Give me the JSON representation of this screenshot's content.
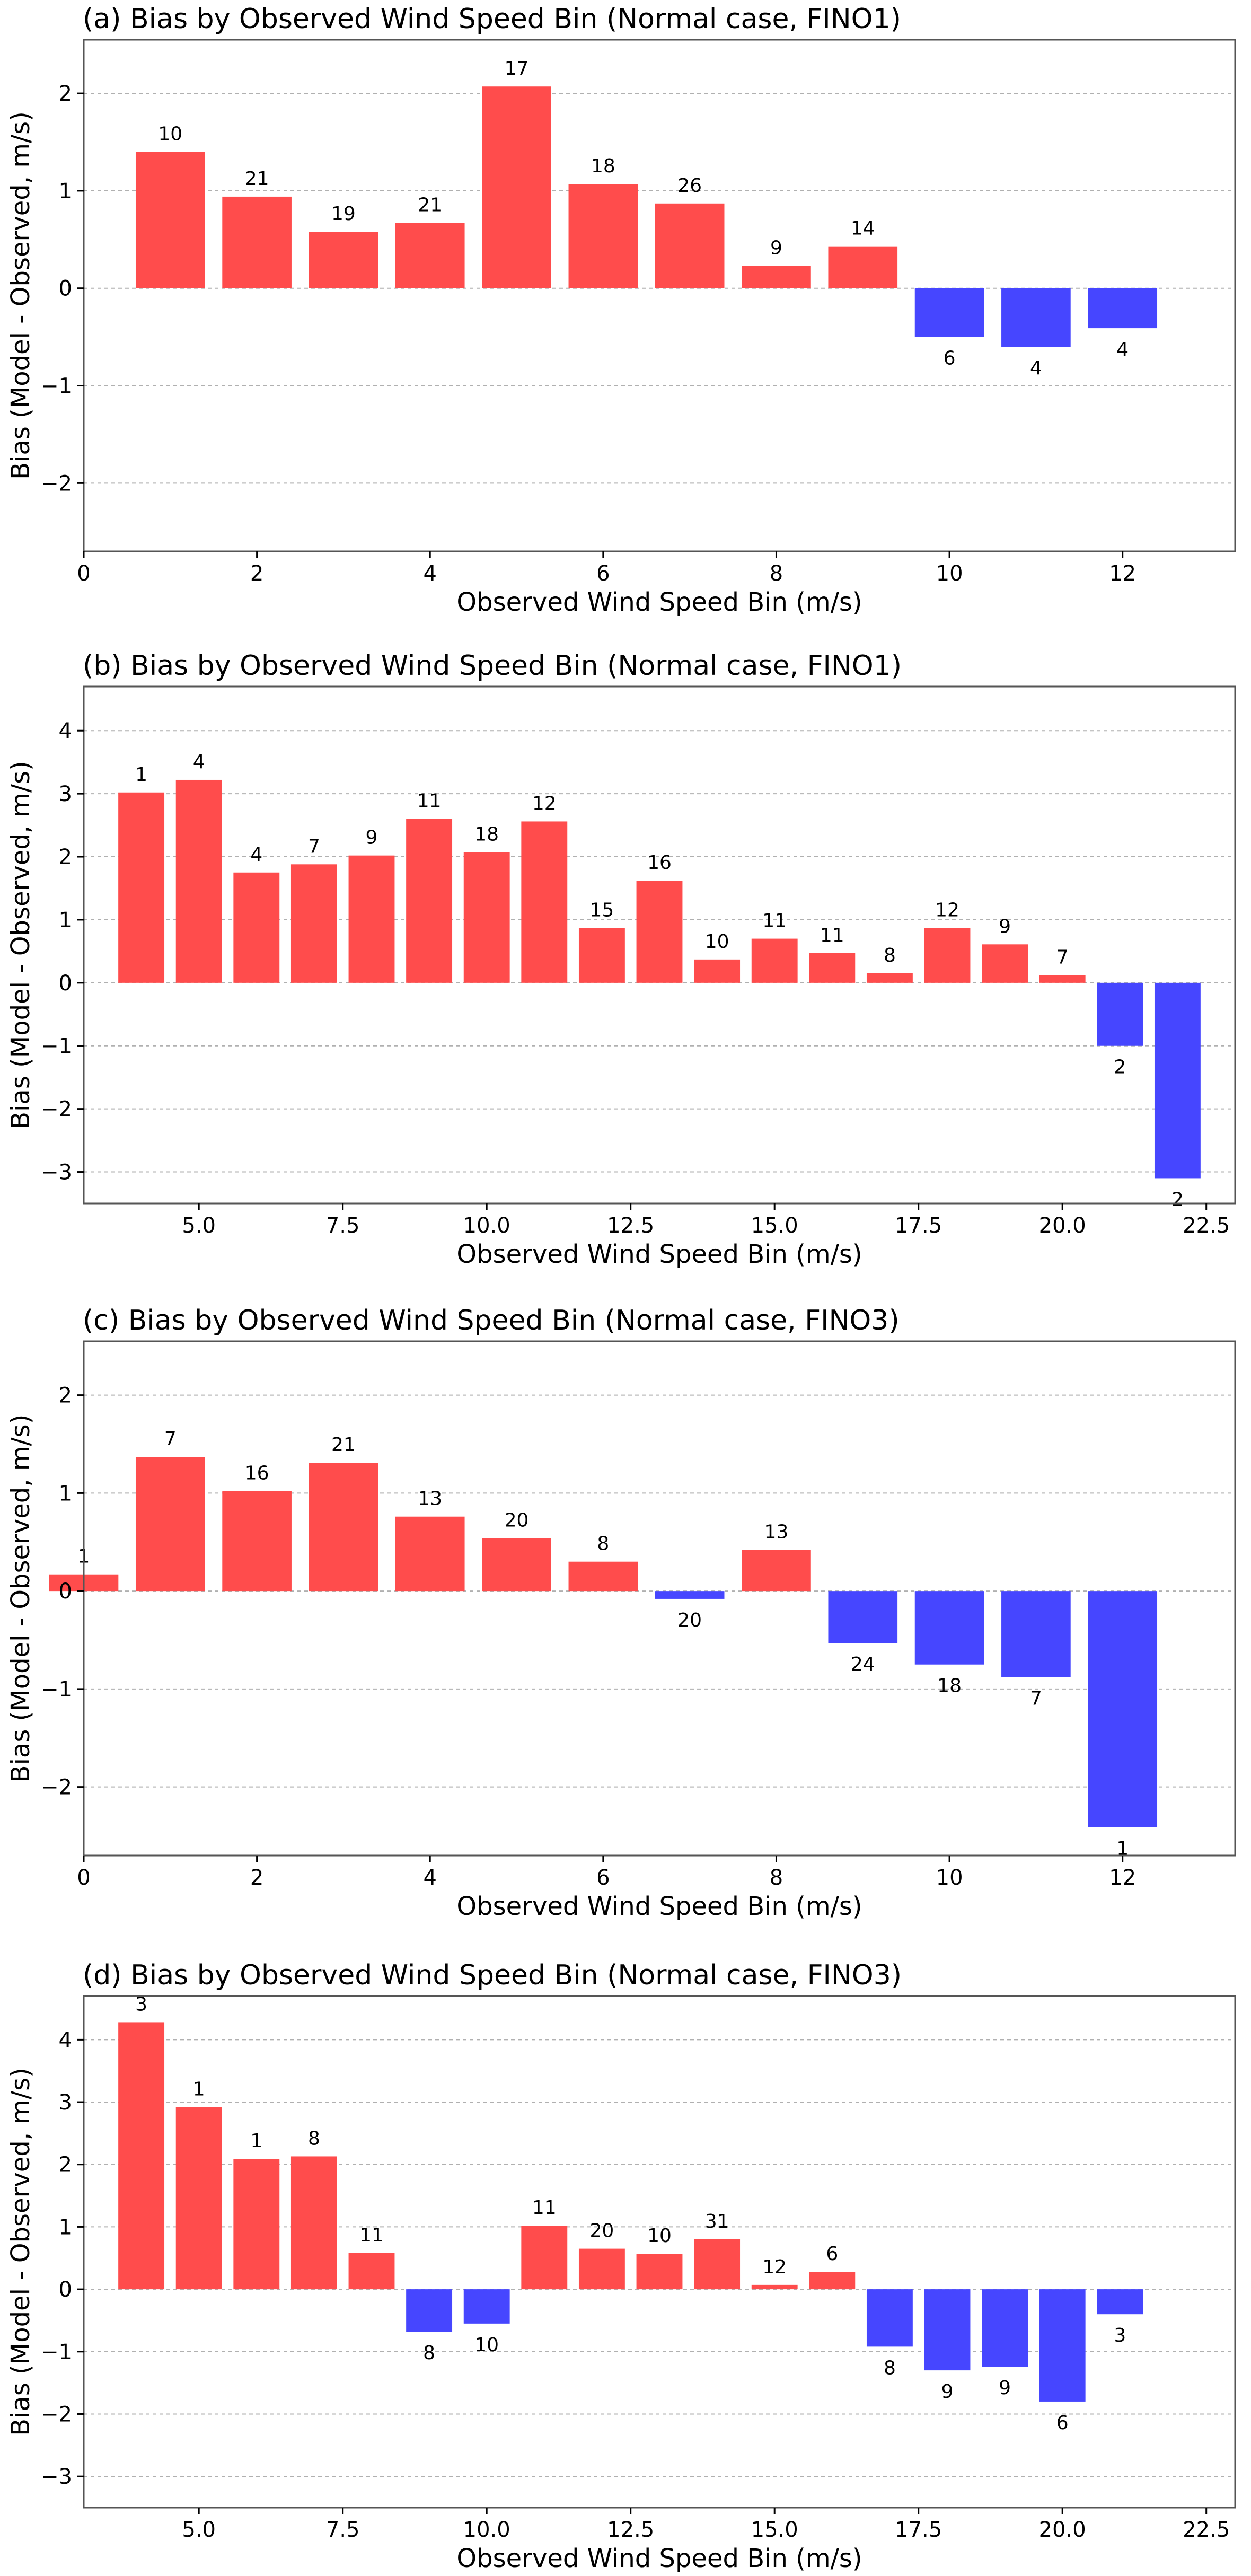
{
  "colors": {
    "positive": "#ff4c4c",
    "negative": "#4646ff",
    "grid": "#b0b0b0",
    "axis": "#555555"
  },
  "chart_data": [
    {
      "id": "a",
      "type": "bar",
      "title": "(a) Bias by Observed Wind Speed Bin (Normal case, FINO1)",
      "xlabel": "Observed Wind Speed Bin (m/s)",
      "ylabel": "Bias (Model - Observed, m/s)",
      "xlim": [
        0,
        13.3
      ],
      "ylim": [
        -2.7,
        2.55
      ],
      "x_ticks": [
        0,
        2,
        4,
        6,
        8,
        10,
        12
      ],
      "x_tick_labels": [
        "0",
        "2",
        "4",
        "6",
        "8",
        "10",
        "12"
      ],
      "y_ticks": [
        -2,
        -1,
        0,
        1,
        2
      ],
      "y_tick_labels": [
        "−2",
        "−1",
        "0",
        "1",
        "2"
      ],
      "grid": "horizontal-dashed",
      "bars": [
        {
          "x": 1,
          "value": 1.4,
          "count": "10"
        },
        {
          "x": 2,
          "value": 0.94,
          "count": "21"
        },
        {
          "x": 3,
          "value": 0.58,
          "count": "19"
        },
        {
          "x": 4,
          "value": 0.67,
          "count": "21"
        },
        {
          "x": 5,
          "value": 2.07,
          "count": "17"
        },
        {
          "x": 6,
          "value": 1.07,
          "count": "18"
        },
        {
          "x": 7,
          "value": 0.87,
          "count": "26"
        },
        {
          "x": 8,
          "value": 0.23,
          "count": "9"
        },
        {
          "x": 9,
          "value": 0.43,
          "count": "14"
        },
        {
          "x": 10,
          "value": -0.5,
          "count": "6"
        },
        {
          "x": 11,
          "value": -0.6,
          "count": "4"
        },
        {
          "x": 12,
          "value": -0.41,
          "count": "4"
        }
      ]
    },
    {
      "id": "b",
      "type": "bar",
      "title": "(b) Bias by Observed Wind Speed Bin (Normal case, FINO1)",
      "xlabel": "Observed Wind Speed Bin (m/s)",
      "ylabel": "Bias (Model - Observed, m/s)",
      "xlim": [
        3.0,
        23.0
      ],
      "ylim": [
        -3.5,
        4.7
      ],
      "x_ticks": [
        5,
        7.5,
        10,
        12.5,
        15,
        17.5,
        20,
        22.5
      ],
      "x_tick_labels": [
        "5.0",
        "7.5",
        "10.0",
        "12.5",
        "15.0",
        "17.5",
        "20.0",
        "22.5"
      ],
      "y_ticks": [
        -3,
        -2,
        -1,
        0,
        1,
        2,
        3,
        4
      ],
      "y_tick_labels": [
        "−3",
        "−2",
        "−1",
        "0",
        "1",
        "2",
        "3",
        "4"
      ],
      "grid": "horizontal-dashed",
      "bars": [
        {
          "x": 4,
          "value": 3.02,
          "count": "1"
        },
        {
          "x": 5,
          "value": 3.22,
          "count": "4"
        },
        {
          "x": 6,
          "value": 1.75,
          "count": "4"
        },
        {
          "x": 7,
          "value": 1.88,
          "count": "7"
        },
        {
          "x": 8,
          "value": 2.02,
          "count": "9"
        },
        {
          "x": 9,
          "value": 2.6,
          "count": "11"
        },
        {
          "x": 10,
          "value": 2.07,
          "count": "18"
        },
        {
          "x": 11,
          "value": 2.56,
          "count": "12"
        },
        {
          "x": 12,
          "value": 0.87,
          "count": "15"
        },
        {
          "x": 13,
          "value": 1.62,
          "count": "16"
        },
        {
          "x": 14,
          "value": 0.37,
          "count": "10"
        },
        {
          "x": 15,
          "value": 0.7,
          "count": "11"
        },
        {
          "x": 16,
          "value": 0.47,
          "count": "11"
        },
        {
          "x": 17,
          "value": 0.15,
          "count": "8"
        },
        {
          "x": 18,
          "value": 0.87,
          "count": "12"
        },
        {
          "x": 19,
          "value": 0.61,
          "count": "9"
        },
        {
          "x": 20,
          "value": 0.12,
          "count": "7"
        },
        {
          "x": 21,
          "value": -1.0,
          "count": "2"
        },
        {
          "x": 22,
          "value": -3.1,
          "count": "2"
        }
      ]
    },
    {
      "id": "c",
      "type": "bar",
      "title": "(c) Bias by Observed Wind Speed Bin (Normal case, FINO3)",
      "xlabel": "Observed Wind Speed Bin (m/s)",
      "ylabel": "Bias (Model - Observed, m/s)",
      "xlim": [
        0,
        13.3
      ],
      "ylim": [
        -2.7,
        2.55
      ],
      "x_ticks": [
        0,
        2,
        4,
        6,
        8,
        10,
        12
      ],
      "x_tick_labels": [
        "0",
        "2",
        "4",
        "6",
        "8",
        "10",
        "12"
      ],
      "y_ticks": [
        -2,
        -1,
        0,
        1,
        2
      ],
      "y_tick_labels": [
        "−2",
        "−1",
        "0",
        "1",
        "2"
      ],
      "grid": "horizontal-dashed",
      "bars": [
        {
          "x": 0,
          "value": 0.17,
          "count": "1"
        },
        {
          "x": 1,
          "value": 1.37,
          "count": "7"
        },
        {
          "x": 2,
          "value": 1.02,
          "count": "16"
        },
        {
          "x": 3,
          "value": 1.31,
          "count": "21"
        },
        {
          "x": 4,
          "value": 0.76,
          "count": "13"
        },
        {
          "x": 5,
          "value": 0.54,
          "count": "20"
        },
        {
          "x": 6,
          "value": 0.3,
          "count": "8"
        },
        {
          "x": 7,
          "value": -0.08,
          "count": "20"
        },
        {
          "x": 8,
          "value": 0.42,
          "count": "13"
        },
        {
          "x": 9,
          "value": -0.53,
          "count": "24"
        },
        {
          "x": 10,
          "value": -0.75,
          "count": "18"
        },
        {
          "x": 11,
          "value": -0.88,
          "count": "7"
        },
        {
          "x": 12,
          "value": -2.41,
          "count": "1"
        }
      ]
    },
    {
      "id": "d",
      "type": "bar",
      "title": "(d) Bias by Observed Wind Speed Bin (Normal case, FINO3)",
      "xlabel": "Observed Wind Speed Bin (m/s)",
      "ylabel": "Bias (Model - Observed, m/s)",
      "xlim": [
        3.0,
        23.0
      ],
      "ylim": [
        -3.5,
        4.7
      ],
      "x_ticks": [
        5,
        7.5,
        10,
        12.5,
        15,
        17.5,
        20,
        22.5
      ],
      "x_tick_labels": [
        "5.0",
        "7.5",
        "10.0",
        "12.5",
        "15.0",
        "17.5",
        "20.0",
        "22.5"
      ],
      "y_ticks": [
        -3,
        -2,
        -1,
        0,
        1,
        2,
        3,
        4
      ],
      "y_tick_labels": [
        "−3",
        "−2",
        "−1",
        "0",
        "1",
        "2",
        "3",
        "4"
      ],
      "grid": "horizontal-dashed",
      "bars": [
        {
          "x": 4,
          "value": 4.28,
          "count": "3"
        },
        {
          "x": 5,
          "value": 2.92,
          "count": "1"
        },
        {
          "x": 6,
          "value": 2.09,
          "count": "1"
        },
        {
          "x": 7,
          "value": 2.13,
          "count": "8"
        },
        {
          "x": 8,
          "value": 0.58,
          "count": "11"
        },
        {
          "x": 9,
          "value": -0.68,
          "count": "8"
        },
        {
          "x": 10,
          "value": -0.55,
          "count": "10"
        },
        {
          "x": 11,
          "value": 1.02,
          "count": "11"
        },
        {
          "x": 12,
          "value": 0.65,
          "count": "20"
        },
        {
          "x": 13,
          "value": 0.57,
          "count": "10"
        },
        {
          "x": 14,
          "value": 0.8,
          "count": "31"
        },
        {
          "x": 15,
          "value": 0.07,
          "count": "12"
        },
        {
          "x": 16,
          "value": 0.28,
          "count": "6"
        },
        {
          "x": 17,
          "value": -0.92,
          "count": "8"
        },
        {
          "x": 18,
          "value": -1.3,
          "count": "9"
        },
        {
          "x": 19,
          "value": -1.24,
          "count": "9"
        },
        {
          "x": 20,
          "value": -1.8,
          "count": "6"
        },
        {
          "x": 21,
          "value": -0.4,
          "count": "3"
        }
      ]
    }
  ]
}
